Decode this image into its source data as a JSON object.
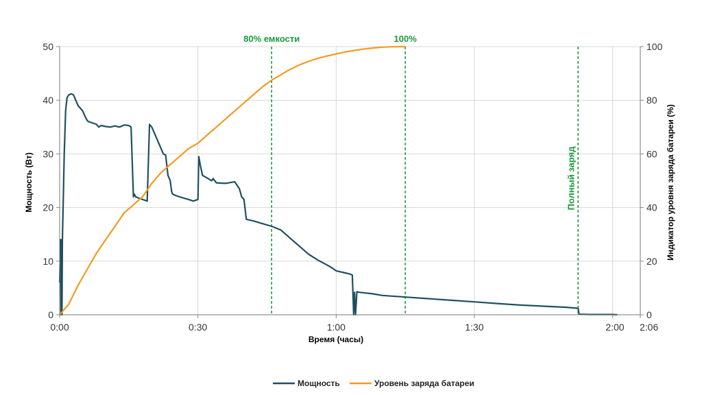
{
  "chart_data": {
    "type": "line",
    "xlabel": "Время (часы)",
    "ylabel_left": "Мощность (Вт)",
    "ylabel_right": "Индикатор уровня заряда батареи (%)",
    "x_unit": "minutes",
    "xlim": [
      0,
      126
    ],
    "ylim_left": [
      0,
      50
    ],
    "ylim_right": [
      0,
      100
    ],
    "x_ticks": [
      {
        "value": 0,
        "label": "0:00"
      },
      {
        "value": 30,
        "label": "0:30"
      },
      {
        "value": 60,
        "label": "1:00"
      },
      {
        "value": 90,
        "label": "1:30"
      },
      {
        "value": 120,
        "label": "2:00"
      },
      {
        "value": 126,
        "label": "2:06"
      }
    ],
    "y_ticks_left": [
      "0",
      "10",
      "20",
      "30",
      "40",
      "50"
    ],
    "y_ticks_right": [
      "0",
      "20",
      "40",
      "60",
      "80",
      "100"
    ],
    "grid": true,
    "legend_position": "bottom-center",
    "colors": {
      "power": "#1e4f5f",
      "battery": "#f39a1e",
      "marker": "#1a9a3c",
      "grid": "#d8d8d8"
    },
    "markers": [
      {
        "x": 46,
        "label": "80% емкости",
        "label_position": "top"
      },
      {
        "x": 75,
        "label": "100%",
        "label_position": "top"
      },
      {
        "x": 112.5,
        "label": "Полный заряд",
        "label_position": "vertical"
      }
    ],
    "series": [
      {
        "name": "Мощность",
        "axis": "left",
        "x": [
          0,
          0.2,
          0.3,
          0.4,
          0.5,
          0.6,
          0.8,
          1.0,
          1.3,
          1.6,
          2.0,
          2.5,
          3.0,
          3.5,
          4.0,
          4.5,
          5.0,
          5.5,
          6.0,
          6.3,
          7.0,
          8.0,
          8.5,
          9.0,
          10.0,
          11.0,
          12.0,
          13.0,
          14.0,
          15.0,
          15.5,
          16.0,
          16.2,
          16.5,
          17.0,
          18.0,
          19.0,
          19.5,
          20.0,
          20.5,
          21.0,
          22.0,
          22.5,
          23.0,
          23.5,
          24.0,
          24.3,
          24.5,
          25.0,
          26.0,
          28.0,
          29.0,
          30.0,
          30.2,
          30.5,
          31.0,
          32.0,
          33.0,
          33.3,
          34.0,
          36.0,
          38.0,
          39.0,
          39.5,
          40.0,
          40.5,
          42.0,
          44.0,
          46.0,
          48.0,
          50.0,
          52.0,
          54.0,
          56.0,
          58.0,
          59.0,
          60.0,
          62.0,
          63.0,
          63.5,
          63.8,
          64.0,
          64.2,
          64.5,
          65.0,
          68.0,
          70.0,
          75.0,
          80.0,
          85.0,
          90.0,
          95.0,
          100.0,
          105.0,
          110.0,
          112.5,
          112.7,
          115.0,
          120.0,
          121.0
        ],
        "values": [
          6,
          14,
          0,
          14,
          0,
          14,
          22,
          30,
          38,
          40.5,
          41,
          41.2,
          41,
          40,
          39,
          38.5,
          38,
          37,
          36.2,
          36,
          35.8,
          35.5,
          35,
          35.3,
          35.1,
          35,
          35.2,
          35,
          35.4,
          35.3,
          35,
          22,
          22.5,
          22,
          21.8,
          21.5,
          21.2,
          35.5,
          35,
          34,
          33,
          31,
          30,
          29.8,
          26,
          25,
          23,
          22.5,
          22.3,
          22,
          21.5,
          21.2,
          21.5,
          29.5,
          28,
          26,
          25.5,
          25,
          25.4,
          24.6,
          24.5,
          24.8,
          23.5,
          22,
          21.5,
          17.8,
          17.5,
          17,
          16.5,
          15.8,
          14.3,
          12.8,
          11.3,
          10.2,
          9.3,
          8.8,
          8.2,
          7.8,
          7.6,
          7.4,
          0,
          4.2,
          0,
          4.3,
          4.2,
          3.9,
          3.6,
          3.3,
          3.0,
          2.7,
          2.4,
          2.1,
          1.8,
          1.6,
          1.4,
          1.2,
          0.1,
          0.05,
          0.05,
          0
        ]
      },
      {
        "name": "Уровень заряда батареи",
        "axis": "right",
        "x": [
          0,
          2,
          4,
          6,
          8,
          10,
          12,
          14,
          16,
          18,
          20,
          22,
          24,
          26,
          28,
          30,
          32,
          34,
          36,
          38,
          40,
          42,
          44,
          46,
          48,
          50,
          52,
          54,
          56,
          58,
          60,
          62,
          64,
          66,
          68,
          70,
          72,
          75
        ],
        "values": [
          0,
          4,
          11,
          17,
          23,
          28,
          33,
          38,
          41,
          44,
          49,
          53,
          56,
          59,
          62,
          64,
          67,
          70,
          73,
          76,
          79,
          82,
          85,
          87.5,
          89.5,
          91.5,
          93.2,
          94.5,
          95.6,
          96.5,
          97.3,
          98,
          98.6,
          99.1,
          99.5,
          99.8,
          99.95,
          100
        ]
      }
    ]
  }
}
